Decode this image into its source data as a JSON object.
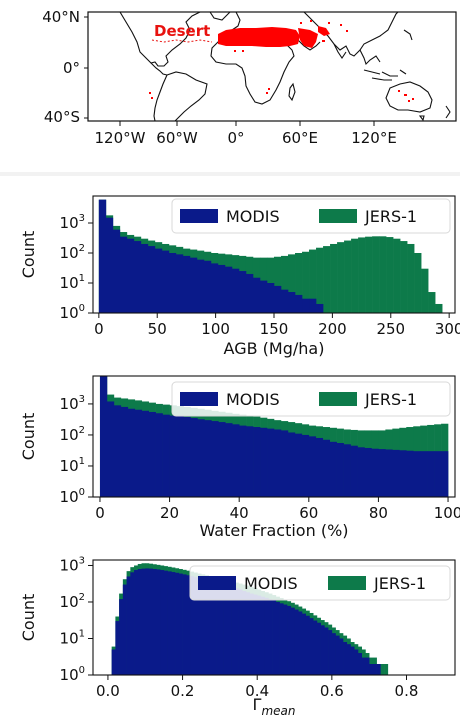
{
  "map": {
    "region_label": "Desert",
    "highlight_color": "#ff0000",
    "lat_ticks": [
      "40°N",
      "0°",
      "40°S"
    ],
    "lon_ticks": [
      "120°W",
      "60°W",
      "0°",
      "60°E",
      "120°E"
    ]
  },
  "colors": {
    "modis": "#0a1a8a",
    "jers": "#0d7a4a",
    "divider": "#f2f2f2"
  },
  "chart_data": [
    {
      "type": "histogram",
      "xlabel": "AGB (Mg/ha)",
      "ylabel": "Count",
      "y_scale": "log",
      "xlim": [
        -5,
        305
      ],
      "ylim_exp": [
        0,
        3.9
      ],
      "x_ticks": [
        0,
        50,
        100,
        150,
        200,
        250,
        300
      ],
      "y_tick_exps": [
        0,
        1,
        2,
        3
      ],
      "legend": "top-right",
      "series": [
        {
          "name": "MODIS",
          "color": "#0a1a8a",
          "bin_start": 0,
          "bin_width": 6,
          "counts": [
            6000,
            1500,
            600,
            350,
            300,
            250,
            200,
            170,
            140,
            120,
            100,
            90,
            80,
            70,
            60,
            55,
            45,
            40,
            35,
            30,
            25,
            20,
            15,
            12,
            10,
            8,
            6,
            5,
            4,
            3,
            3,
            2,
            1,
            1,
            0,
            0,
            0,
            0,
            0,
            0,
            0,
            0,
            0,
            0,
            0,
            0,
            0,
            0,
            0,
            0
          ]
        },
        {
          "name": "JERS-1",
          "color": "#0d7a4a",
          "bin_start": 0,
          "bin_width": 6,
          "counts": [
            6000,
            1800,
            800,
            500,
            400,
            350,
            300,
            260,
            230,
            200,
            180,
            160,
            140,
            130,
            120,
            110,
            100,
            95,
            90,
            85,
            80,
            75,
            70,
            70,
            70,
            75,
            80,
            90,
            100,
            110,
            130,
            150,
            170,
            200,
            230,
            260,
            300,
            330,
            350,
            360,
            360,
            340,
            300,
            250,
            200,
            100,
            30,
            5,
            2,
            0
          ]
        }
      ]
    },
    {
      "type": "histogram",
      "xlabel": "Water Fraction (%)",
      "ylabel": "Count",
      "y_scale": "log",
      "xlim": [
        -2,
        102
      ],
      "ylim_exp": [
        0,
        3.9
      ],
      "x_ticks": [
        0,
        20,
        40,
        60,
        80,
        100
      ],
      "y_tick_exps": [
        0,
        1,
        2,
        3
      ],
      "legend": "top-right",
      "series": [
        {
          "name": "MODIS",
          "color": "#0a1a8a",
          "bin_start": 0,
          "bin_width": 2,
          "counts": [
            8000,
            1200,
            900,
            800,
            700,
            650,
            600,
            550,
            500,
            450,
            420,
            400,
            380,
            350,
            320,
            300,
            280,
            260,
            240,
            220,
            200,
            190,
            180,
            170,
            160,
            150,
            140,
            120,
            110,
            100,
            90,
            80,
            70,
            60,
            55,
            50,
            45,
            40,
            38,
            36,
            35,
            34,
            33,
            32,
            31,
            30,
            30,
            30,
            30,
            30
          ]
        },
        {
          "name": "JERS-1",
          "color": "#0d7a4a",
          "bin_start": 0,
          "bin_width": 2,
          "counts": [
            8000,
            2000,
            1600,
            1500,
            1400,
            1300,
            1200,
            1100,
            1000,
            950,
            900,
            850,
            800,
            750,
            700,
            650,
            600,
            560,
            520,
            480,
            450,
            420,
            390,
            360,
            330,
            300,
            280,
            260,
            240,
            220,
            200,
            190,
            180,
            170,
            160,
            150,
            145,
            140,
            140,
            140,
            140,
            150,
            160,
            170,
            180,
            190,
            200,
            210,
            220,
            230
          ]
        }
      ]
    },
    {
      "type": "histogram",
      "xlabel": "Γmean",
      "ylabel": "Count",
      "y_scale": "log",
      "xlim": [
        -0.04,
        0.93
      ],
      "ylim_exp": [
        0,
        3.15
      ],
      "x_ticks": [
        0.0,
        0.2,
        0.4,
        0.6,
        0.8
      ],
      "y_tick_exps": [
        0,
        1,
        2,
        3
      ],
      "legend": "top-right",
      "series": [
        {
          "name": "MODIS",
          "color": "#0a1a8a",
          "bin_start": 0.0,
          "bin_width": 0.01,
          "counts": [
            0,
            5,
            30,
            120,
            300,
            500,
            650,
            750,
            800,
            820,
            830,
            820,
            800,
            780,
            750,
            720,
            690,
            660,
            630,
            600,
            570,
            540,
            510,
            480,
            450,
            420,
            400,
            380,
            360,
            340,
            320,
            300,
            280,
            260,
            240,
            220,
            200,
            185,
            170,
            160,
            150,
            140,
            130,
            120,
            110,
            100,
            92,
            85,
            78,
            70,
            62,
            55,
            48,
            42,
            36,
            31,
            27,
            23,
            20,
            17,
            14,
            12,
            10,
            8,
            7,
            6,
            5,
            4,
            3,
            3,
            2,
            2,
            2,
            1,
            1,
            1,
            1,
            1,
            1,
            0,
            0,
            0,
            0,
            0,
            0,
            0,
            0,
            0,
            0,
            0,
            0
          ]
        },
        {
          "name": "JERS-1",
          "color": "#0d7a4a",
          "bin_start": 0.0,
          "bin_width": 0.01,
          "counts": [
            0,
            6,
            40,
            170,
            420,
            700,
            900,
            1000,
            1100,
            1150,
            1150,
            1120,
            1080,
            1040,
            1000,
            960,
            920,
            880,
            840,
            800,
            760,
            720,
            680,
            640,
            600,
            570,
            540,
            510,
            480,
            450,
            420,
            400,
            380,
            360,
            340,
            320,
            300,
            280,
            260,
            240,
            220,
            200,
            185,
            170,
            155,
            140,
            128,
            116,
            105,
            95,
            85,
            75,
            66,
            58,
            50,
            43,
            37,
            32,
            28,
            24,
            20,
            17,
            14,
            12,
            10,
            8,
            7,
            6,
            5,
            4,
            3,
            3,
            2,
            2,
            2,
            1,
            1,
            1,
            1,
            1,
            1,
            0,
            0,
            0,
            0,
            0,
            0,
            0,
            0,
            0,
            0
          ]
        }
      ]
    }
  ]
}
